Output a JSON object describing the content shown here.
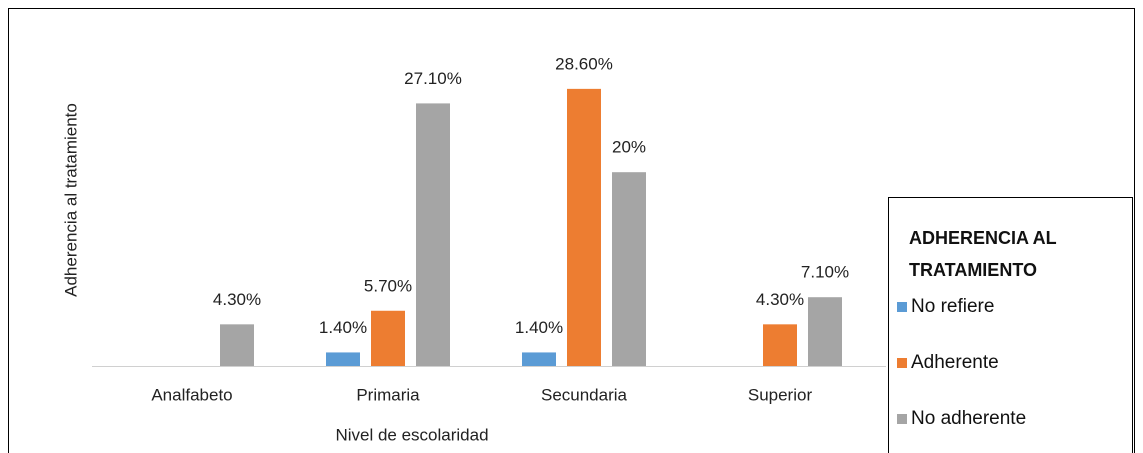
{
  "chart_data": {
    "type": "bar",
    "x_label": "Nivel de escolaridad",
    "y_label": "Adherencia al tratamiento",
    "legend_title": "ADHERENCIA AL TRATAMIENTO",
    "legend_position": "right",
    "categories": [
      "Analfabeto",
      "Primaria",
      "Secundaria",
      "Superior"
    ],
    "series": [
      {
        "name": "No refiere",
        "color": "#5b9bd5",
        "values": [
          null,
          1.4,
          1.4,
          null
        ],
        "value_labels": [
          null,
          "1.40%",
          "1.40%",
          null
        ]
      },
      {
        "name": "Adherente",
        "color": "#ed7d31",
        "values": [
          null,
          5.7,
          28.6,
          4.3
        ],
        "value_labels": [
          null,
          "5.70%",
          "28.60%",
          "4.30%"
        ]
      },
      {
        "name": "No adherente",
        "color": "#a5a5a5",
        "values": [
          4.3,
          27.1,
          20,
          7.1
        ],
        "value_labels": [
          "4.30%",
          "27.10%",
          "20%",
          "7.10%"
        ]
      }
    ]
  }
}
